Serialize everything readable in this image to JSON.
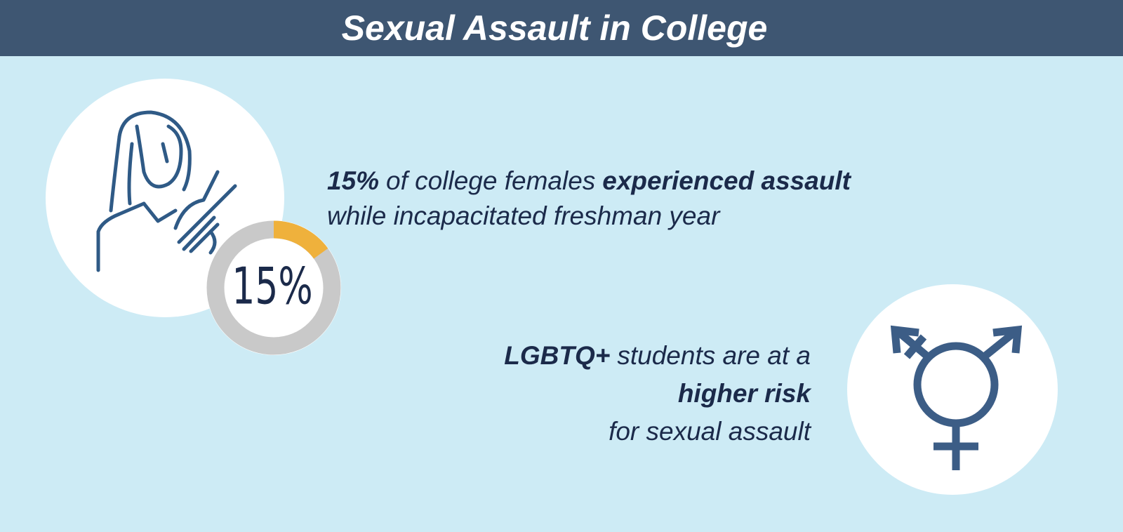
{
  "header": {
    "title": "Sexual Assault in College"
  },
  "donut": {
    "value": 15,
    "value_label": "15%",
    "color": "#efb13c",
    "track_color": "#c9c9c9"
  },
  "facts": [
    {
      "lines": [
        [
          {
            "text": "15%",
            "bold": true
          },
          {
            "text": "of college females"
          },
          {
            "text": "experienced assault",
            "bold": true
          }
        ],
        [
          {
            "text": "while incapacitated freshman year"
          }
        ]
      ]
    },
    {
      "lines": [
        [
          {
            "text": "LGBTQ+",
            "bold": true
          },
          {
            "text": "students are at a"
          }
        ],
        [
          {
            "text": "higher risk",
            "bold": true
          }
        ],
        [
          {
            "text": "for sexual assault"
          }
        ]
      ]
    }
  ]
}
